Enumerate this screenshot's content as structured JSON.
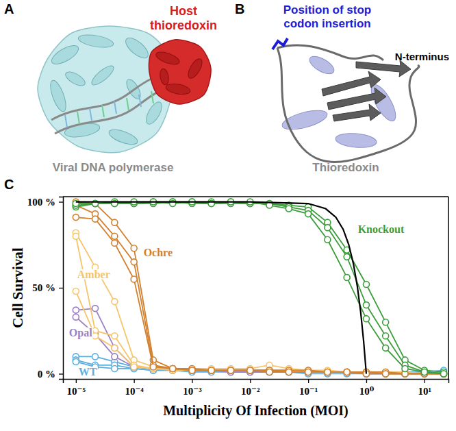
{
  "panel_a": {
    "letter": "A",
    "protein": "Viral DNA polymerase",
    "partner": "Host thioredoxin"
  },
  "panel_b": {
    "letter": "B",
    "protein": "Thioredoxin",
    "site": "Position of stop codon insertion",
    "terminus": "N-terminus"
  },
  "panel_c": {
    "letter": "C"
  },
  "chart_data": {
    "type": "line",
    "x_label": "Multiplicity Of Infection (MOI)",
    "y_label": "Cell Survival",
    "log": "x",
    "grid": false,
    "xlim": [
      6e-06,
      26
    ],
    "ylim": [
      -3,
      103
    ],
    "xticks": [
      {
        "value": 1e-05,
        "label": "10⁻⁵"
      },
      {
        "value": 0.0001,
        "label": "10⁻⁴"
      },
      {
        "value": 0.001,
        "label": "10⁻³"
      },
      {
        "value": 0.01,
        "label": "10⁻²"
      },
      {
        "value": 0.1,
        "label": "10⁻¹"
      },
      {
        "value": 1,
        "label": "10⁰"
      },
      {
        "value": 10,
        "label": "10¹"
      }
    ],
    "yticks": [
      {
        "value": 0,
        "label": "0 %"
      },
      {
        "value": 50,
        "label": "50 %"
      },
      {
        "value": 100,
        "label": "100 %"
      }
    ],
    "series": [
      {
        "name": "WT",
        "color": "#5aaee0",
        "marker": "circle",
        "x": [
          1e-05,
          2.15e-05,
          4.64e-05,
          0.0001,
          0.000215,
          0.000464,
          0.001,
          0.00215,
          0.00464,
          0.01,
          0.0215,
          0.0464,
          0.1,
          0.215,
          0.464,
          1,
          2.15,
          4.64,
          10,
          21.5
        ],
        "replicates": [
          [
            10,
            10,
            7,
            4,
            3,
            3,
            2,
            2,
            2,
            2,
            2,
            1,
            1,
            1,
            1,
            1,
            1,
            1,
            1,
            2
          ],
          [
            8,
            5,
            5,
            3,
            2,
            2,
            2,
            2,
            1,
            1,
            1,
            1,
            1,
            1,
            1,
            0,
            0,
            0,
            0,
            1
          ],
          [
            7,
            4,
            3,
            3,
            2,
            2,
            1,
            1,
            1,
            1,
            1,
            1,
            0,
            0,
            0,
            0,
            0,
            0,
            0,
            0
          ]
        ]
      },
      {
        "name": "Opal",
        "color": "#9a7fc4",
        "marker": "circle",
        "x": [
          1e-05,
          2.15e-05,
          4.64e-05,
          0.0001,
          0.000215,
          0.000464,
          0.001,
          0.00215,
          0.00464,
          0.01,
          0.0215,
          0.0464,
          0.1,
          0.215,
          0.464,
          1,
          2.15,
          4.64,
          10,
          21.5
        ],
        "replicates": [
          [
            37,
            38,
            15,
            4,
            3,
            3,
            2,
            2,
            2,
            2,
            2,
            2,
            1,
            1,
            1,
            1,
            0,
            0,
            0,
            0
          ],
          [
            33,
            23,
            10,
            4,
            3,
            2,
            2,
            2,
            1,
            1,
            1,
            1,
            1,
            1,
            1,
            0,
            0,
            0,
            0,
            0
          ]
        ]
      },
      {
        "name": "Amber",
        "color": "#f6c46a",
        "marker": "circle",
        "x": [
          1e-05,
          2.15e-05,
          4.64e-05,
          0.0001,
          0.000215,
          0.000464,
          0.001,
          0.00215,
          0.00464,
          0.01,
          0.0215,
          0.0464,
          0.1,
          0.215,
          0.464,
          1,
          2.15,
          4.64,
          10,
          21.5
        ],
        "replicates": [
          [
            82,
            62,
            42,
            8,
            4,
            3,
            3,
            3,
            3,
            3,
            5,
            3,
            2,
            2,
            1,
            1,
            1,
            1,
            0,
            0
          ],
          [
            80,
            25,
            22,
            5,
            3,
            3,
            2,
            2,
            2,
            2,
            2,
            2,
            2,
            1,
            1,
            1,
            0,
            0,
            0,
            0
          ],
          [
            48,
            22,
            15,
            4,
            3,
            2,
            2,
            2,
            2,
            2,
            2,
            2,
            1,
            1,
            1,
            1,
            0,
            0,
            0,
            0
          ]
        ]
      },
      {
        "name": "Ochre",
        "color": "#d2802e",
        "marker": "circle",
        "x": [
          1e-05,
          2.15e-05,
          4.64e-05,
          0.0001,
          0.000215,
          0.000464,
          0.001,
          0.00215,
          0.00464,
          0.01,
          0.0215,
          0.0464,
          0.1,
          0.215,
          0.464,
          1,
          2.15,
          4.64,
          10,
          21.5
        ],
        "replicates": [
          [
            100,
            99,
            88,
            73,
            8,
            3,
            3,
            2,
            2,
            2,
            2,
            2,
            2,
            1,
            1,
            1,
            1,
            0,
            0,
            0
          ],
          [
            98,
            93,
            80,
            65,
            5,
            3,
            2,
            2,
            2,
            2,
            2,
            1,
            1,
            1,
            1,
            1,
            0,
            0,
            0,
            0
          ],
          [
            91,
            90,
            76,
            55,
            4,
            3,
            2,
            2,
            2,
            2,
            1,
            1,
            1,
            1,
            1,
            0,
            0,
            0,
            0,
            0
          ]
        ]
      },
      {
        "name": "Knockout",
        "color": "#3c9d3c",
        "marker": "circle",
        "x": [
          1e-05,
          2.15e-05,
          4.64e-05,
          0.0001,
          0.000215,
          0.000464,
          0.001,
          0.00215,
          0.00464,
          0.01,
          0.0215,
          0.0464,
          0.1,
          0.215,
          0.464,
          1,
          2.15,
          4.64,
          10,
          21.5
        ],
        "replicates": [
          [
            97,
            99,
            99,
            99,
            100,
            100,
            100,
            100,
            100,
            99,
            99,
            98,
            97,
            88,
            72,
            52,
            30,
            8,
            2,
            1
          ],
          [
            98,
            99,
            100,
            99,
            99,
            100,
            99,
            99,
            99,
            99,
            99,
            97,
            95,
            85,
            68,
            40,
            22,
            5,
            1,
            0
          ],
          [
            99,
            99,
            99,
            100,
            100,
            99,
            100,
            99,
            100,
            100,
            98,
            96,
            93,
            78,
            56,
            32,
            15,
            3,
            1,
            0
          ]
        ]
      },
      {
        "color": "#000000",
        "marker": "none",
        "x": [
          1e-05,
          0.01,
          0.1,
          0.2,
          0.3,
          0.4,
          0.5,
          0.6,
          0.7,
          0.8,
          0.9,
          1
        ],
        "values": [
          100,
          100,
          99,
          96,
          91,
          84,
          75,
          64,
          51,
          36,
          19,
          0
        ]
      }
    ]
  }
}
